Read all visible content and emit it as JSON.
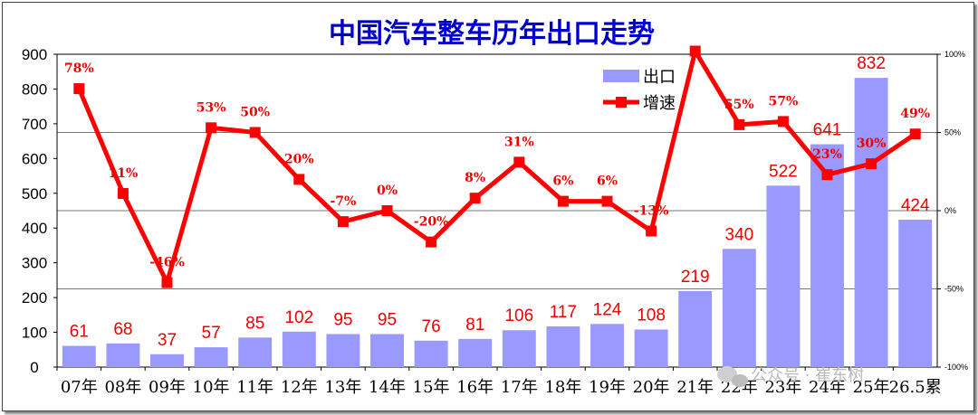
{
  "chart_data": {
    "type": "bar",
    "title": "中国汽车整车历年出口走势",
    "categories": [
      "07年",
      "08年",
      "09年",
      "10年",
      "11年",
      "12年",
      "13年",
      "14年",
      "15年",
      "16年",
      "17年",
      "18年",
      "19年",
      "20年",
      "21年",
      "22年",
      "23年",
      "24年",
      "25年",
      "26.5累"
    ],
    "series": [
      {
        "name": "出口",
        "type": "bar",
        "axis": "left",
        "values": [
          61,
          68,
          37,
          57,
          85,
          102,
          95,
          95,
          76,
          81,
          106,
          117,
          124,
          108,
          219,
          340,
          522,
          641,
          832,
          424
        ],
        "labels": [
          "61",
          "68",
          "37",
          "57",
          "85",
          "102",
          "95",
          "95",
          "76",
          "81",
          "106",
          "117",
          "124",
          "108",
          "219",
          "340",
          "522",
          "641",
          "832",
          "424"
        ],
        "color": "#9999ff"
      },
      {
        "name": "增速",
        "type": "line",
        "axis": "right",
        "values": [
          78,
          11,
          -46,
          53,
          50,
          20,
          -7,
          0,
          -20,
          8,
          31,
          6,
          6,
          -13,
          102,
          55,
          57,
          23,
          30,
          49
        ],
        "labels": [
          "78%",
          "11%",
          "-46%",
          "53%",
          "50%",
          "20%",
          "-7%",
          "0%",
          "-20%",
          "8%",
          "31%",
          "6%",
          "6%",
          "-13%",
          "",
          "55%",
          "57%",
          "23%",
          "30%",
          "49%"
        ],
        "color": "#ff0000"
      }
    ],
    "ylim": [
      0,
      900
    ],
    "yticks": [
      "0",
      "100",
      "200",
      "300",
      "400",
      "500",
      "600",
      "700",
      "800",
      "900"
    ],
    "y2lim": [
      -100,
      100
    ],
    "y2ticks": [
      "-100%",
      "-50%",
      "0%",
      "50%",
      "100%"
    ],
    "legend_position": "top-right",
    "grid": "horizontal at 50% steps of right axis"
  },
  "watermark": "公众号 · 崔东树"
}
